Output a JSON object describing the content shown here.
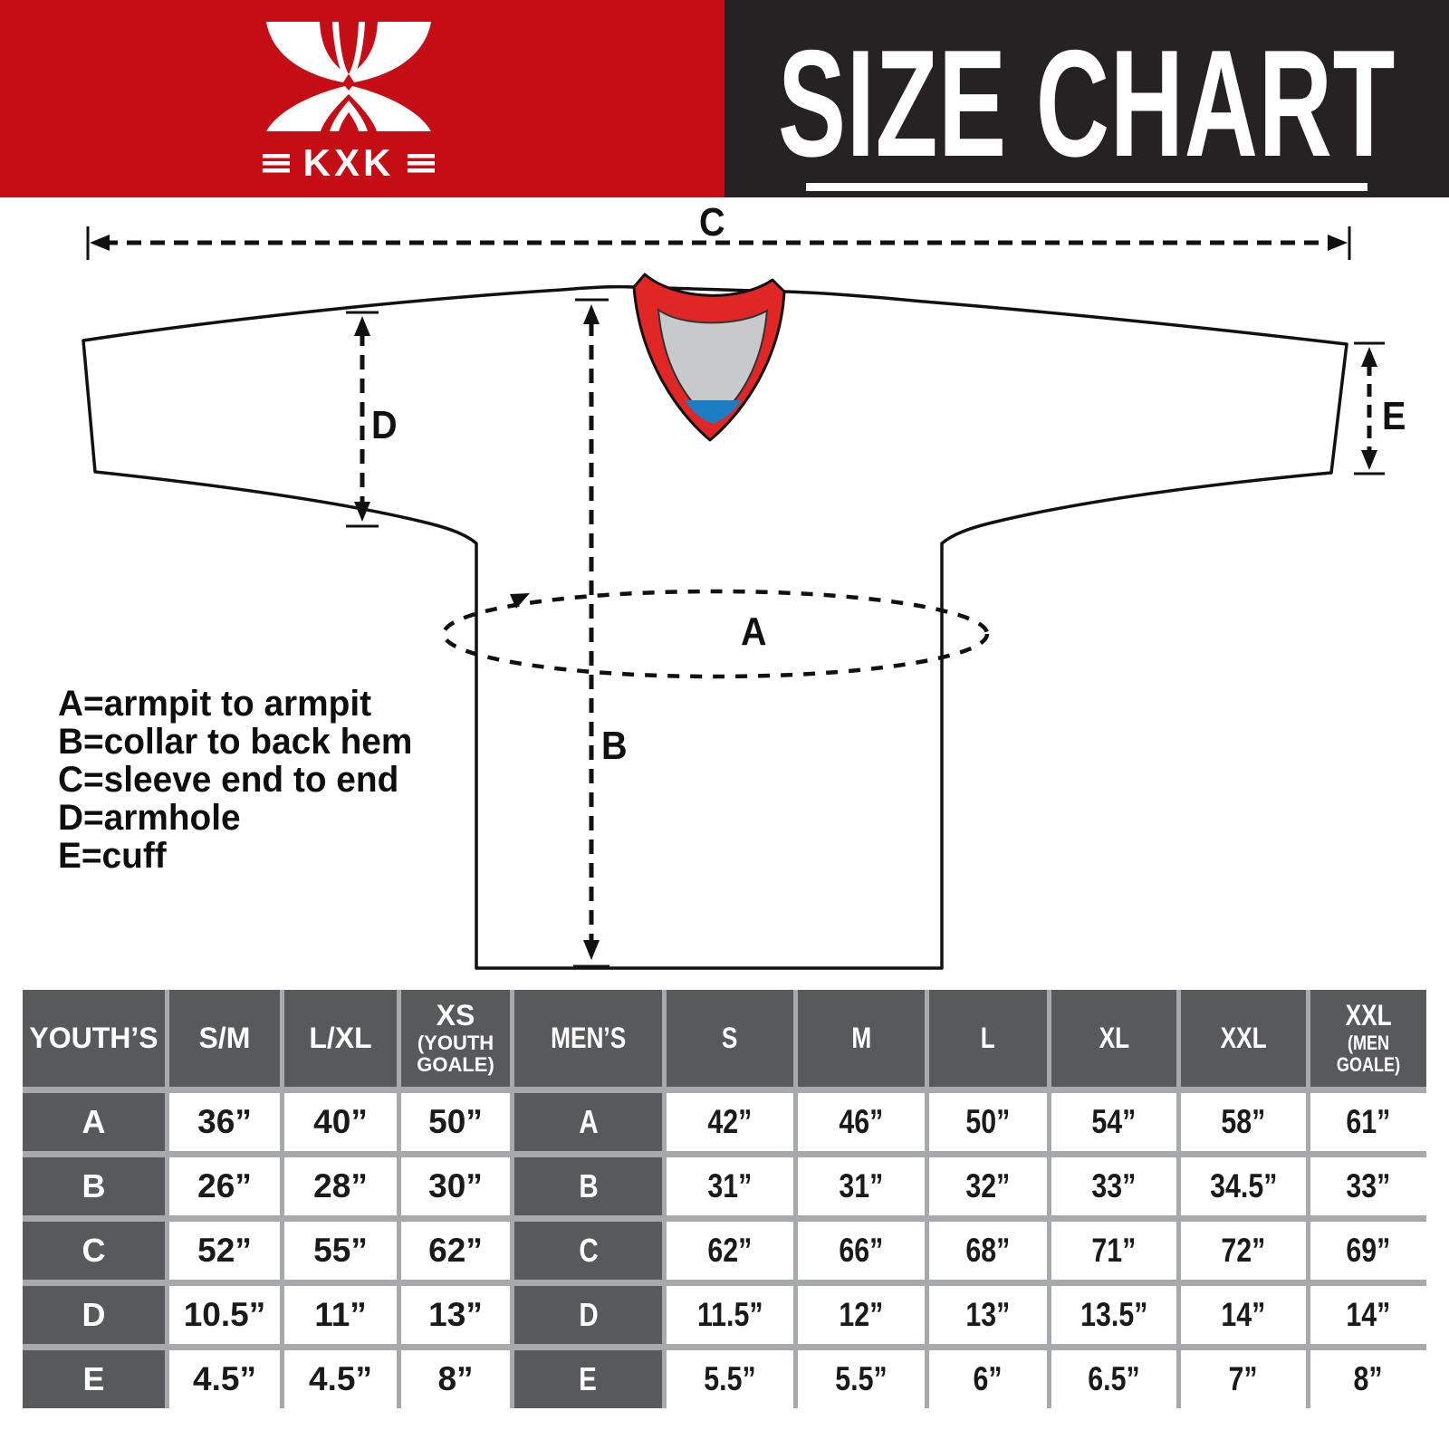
{
  "brand": {
    "logo_text": "KXK"
  },
  "title": "SIZE CHART",
  "diagram": {
    "markers": {
      "a": "A",
      "b": "B",
      "c": "C",
      "d": "D",
      "e": "E"
    },
    "legend": {
      "line_a": "A=armpit to armpit",
      "line_b": "B=collar to back hem",
      "line_c": "C=sleeve end to end",
      "line_d": "D=armhole",
      "line_e": "E=cuff"
    }
  },
  "size_table": {
    "youth": {
      "group_label": "YOUTH’S",
      "columns": [
        "S/M",
        "L/XL",
        "XS"
      ],
      "column_subs": [
        "",
        "",
        "(YOUTH GOALE)"
      ],
      "rows": [
        {
          "label": "A",
          "values": [
            "36”",
            "40”",
            "50”"
          ]
        },
        {
          "label": "B",
          "values": [
            "26”",
            "28”",
            "30”"
          ]
        },
        {
          "label": "C",
          "values": [
            "52”",
            "55”",
            "62”"
          ]
        },
        {
          "label": "D",
          "values": [
            "10.5”",
            "11”",
            "13”"
          ]
        },
        {
          "label": "E",
          "values": [
            "4.5”",
            "4.5”",
            "8”"
          ]
        }
      ]
    },
    "men": {
      "group_label": "MEN’S",
      "columns": [
        "S",
        "M",
        "L",
        "XL",
        "XXL",
        "XXL"
      ],
      "column_subs": [
        "",
        "",
        "",
        "",
        "",
        "(MEN GOALE)"
      ],
      "rows": [
        {
          "label": "A",
          "values": [
            "42”",
            "46”",
            "50”",
            "54”",
            "58”",
            "61”"
          ]
        },
        {
          "label": "B",
          "values": [
            "31”",
            "31”",
            "32”",
            "33”",
            "34.5”",
            "33”"
          ]
        },
        {
          "label": "C",
          "values": [
            "62”",
            "66”",
            "68”",
            "71”",
            "72”",
            "69”"
          ]
        },
        {
          "label": "D",
          "values": [
            "11.5”",
            "12”",
            "13”",
            "13.5”",
            "14”",
            "14”"
          ]
        },
        {
          "label": "E",
          "values": [
            "5.5”",
            "5.5”",
            "6”",
            "6.5”",
            "7”",
            "8”"
          ]
        }
      ]
    }
  },
  "colors": {
    "brand_red": "#C50D15",
    "panel_black": "#262223",
    "collar_red": "#E02726",
    "collar_gray": "#C8C9CB",
    "collar_blue": "#1B7EC2",
    "table_header_gray": "#58595B",
    "table_border_gray": "#A7A9AC"
  }
}
